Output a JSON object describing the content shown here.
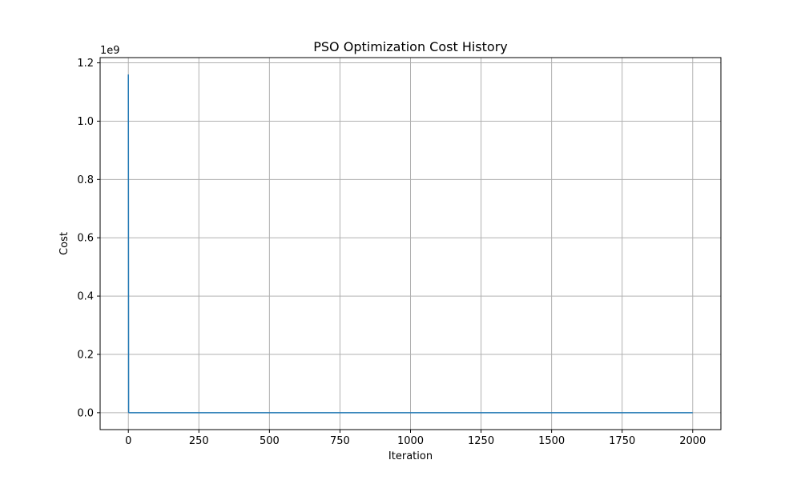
{
  "chart_data": {
    "type": "line",
    "title": "PSO Optimization Cost History",
    "xlabel": "Iteration",
    "ylabel": "Cost",
    "y_offset_text": "1e9",
    "xlim": [
      -100,
      2100
    ],
    "ylim": [
      -0.058,
      1.218
    ],
    "y_scale_factor": 1000000000,
    "x_ticks": [
      0,
      250,
      500,
      750,
      1000,
      1250,
      1500,
      1750,
      2000
    ],
    "x_tick_labels": [
      "0",
      "250",
      "500",
      "750",
      "1000",
      "1250",
      "1500",
      "1750",
      "2000"
    ],
    "y_ticks": [
      0.0,
      0.2,
      0.4,
      0.6,
      0.8,
      1.0,
      1.2
    ],
    "y_tick_labels": [
      "0.0",
      "0.2",
      "0.4",
      "0.6",
      "0.8",
      "1.0",
      "1.2"
    ],
    "grid": true,
    "series": [
      {
        "color": "#1f77b4",
        "x": [
          0,
          1,
          2,
          5,
          10,
          50,
          100,
          500,
          1000,
          1500,
          2000
        ],
        "y": [
          1160000000,
          2000000,
          200000,
          50000,
          20000,
          5000,
          2000,
          1000,
          800,
          700,
          600
        ]
      }
    ]
  }
}
